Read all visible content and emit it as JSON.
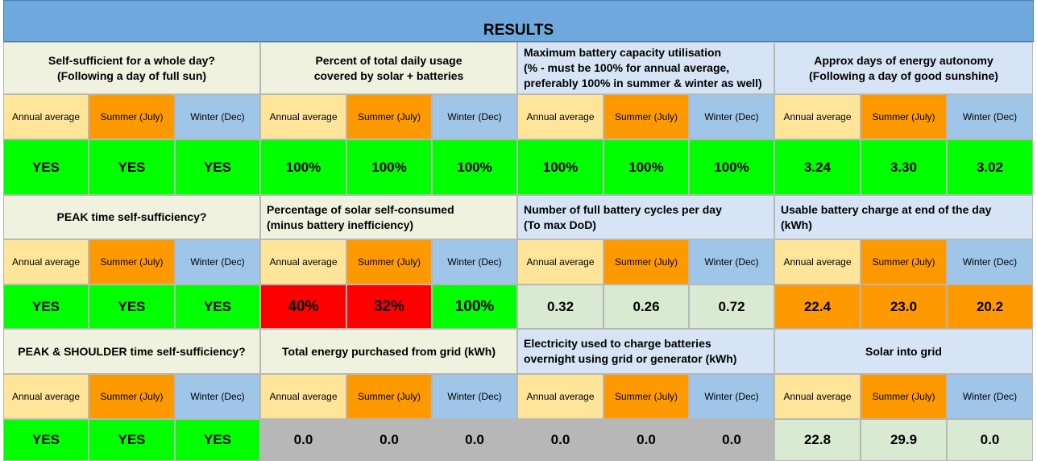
{
  "title": "RESULTS",
  "colors": {
    "title_bar": "#6fa8dc",
    "group1_header": "#eef2df",
    "group2_header": "#d6e4f5",
    "annual": "#ffe599",
    "summer": "#ff9900",
    "winter": "#9fc5e8",
    "green": "#00ff00",
    "red": "#ff0000",
    "orange": "#ff9900",
    "light_green": "#d9ead3",
    "grey": "#b7b7b7"
  },
  "subheaders": [
    "Annual average",
    "Summer (July)",
    "Winter (Dec)"
  ],
  "rows": [
    {
      "metrics": [
        {
          "header": "Self-sufficient for a whole day?\n(Following a day of full sun)",
          "values": [
            "YES",
            "YES",
            "YES"
          ],
          "fill": "green"
        },
        {
          "header": "Percent of total daily usage\ncovered by solar + batteries",
          "values": [
            "100%",
            "100%",
            "100%"
          ],
          "fill": "green"
        },
        {
          "header": "Maximum battery capacity utilisation\n(% - must be 100% for annual average,\npreferably 100% in summer & winter as well)",
          "values": [
            "100%",
            "100%",
            "100%"
          ],
          "fill": "green"
        },
        {
          "header": "Approx days of energy autonomy\n(Following a day of good sunshine)",
          "values": [
            "3.24",
            "3.30",
            "3.02"
          ],
          "fill": "green"
        }
      ]
    },
    {
      "metrics": [
        {
          "header": "PEAK time self-sufficiency?",
          "values": [
            "YES",
            "YES",
            "YES"
          ],
          "fill": "green"
        },
        {
          "header": "Percentage of solar self-consumed\n(minus battery inefficiency)",
          "values": [
            "40%",
            "32%",
            "100%"
          ],
          "fill": "mixed-red"
        },
        {
          "header": "Number of full battery cycles per day\n(To max DoD)",
          "values": [
            "0.32",
            "0.26",
            "0.72"
          ],
          "fill": "light_green"
        },
        {
          "header": "Usable battery charge at end of the day\n(kWh)",
          "values": [
            "22.4",
            "23.0",
            "20.2"
          ],
          "fill": "orange"
        }
      ]
    },
    {
      "metrics": [
        {
          "header": "PEAK & SHOULDER time self-sufficiency?",
          "values": [
            "YES",
            "YES",
            "YES"
          ],
          "fill": "green"
        },
        {
          "header": "Total energy purchased from grid (kWh)",
          "values": [
            "0.0",
            "0.0",
            "0.0"
          ],
          "fill": "grey"
        },
        {
          "header": "Electricity used to charge batteries\novernight using grid or generator (kWh)",
          "values": [
            "0.0",
            "0.0",
            "0.0"
          ],
          "fill": "grey"
        },
        {
          "header": "Solar into grid",
          "values": [
            "22.8",
            "29.9",
            "0.0"
          ],
          "fill": "light_green"
        }
      ]
    }
  ]
}
